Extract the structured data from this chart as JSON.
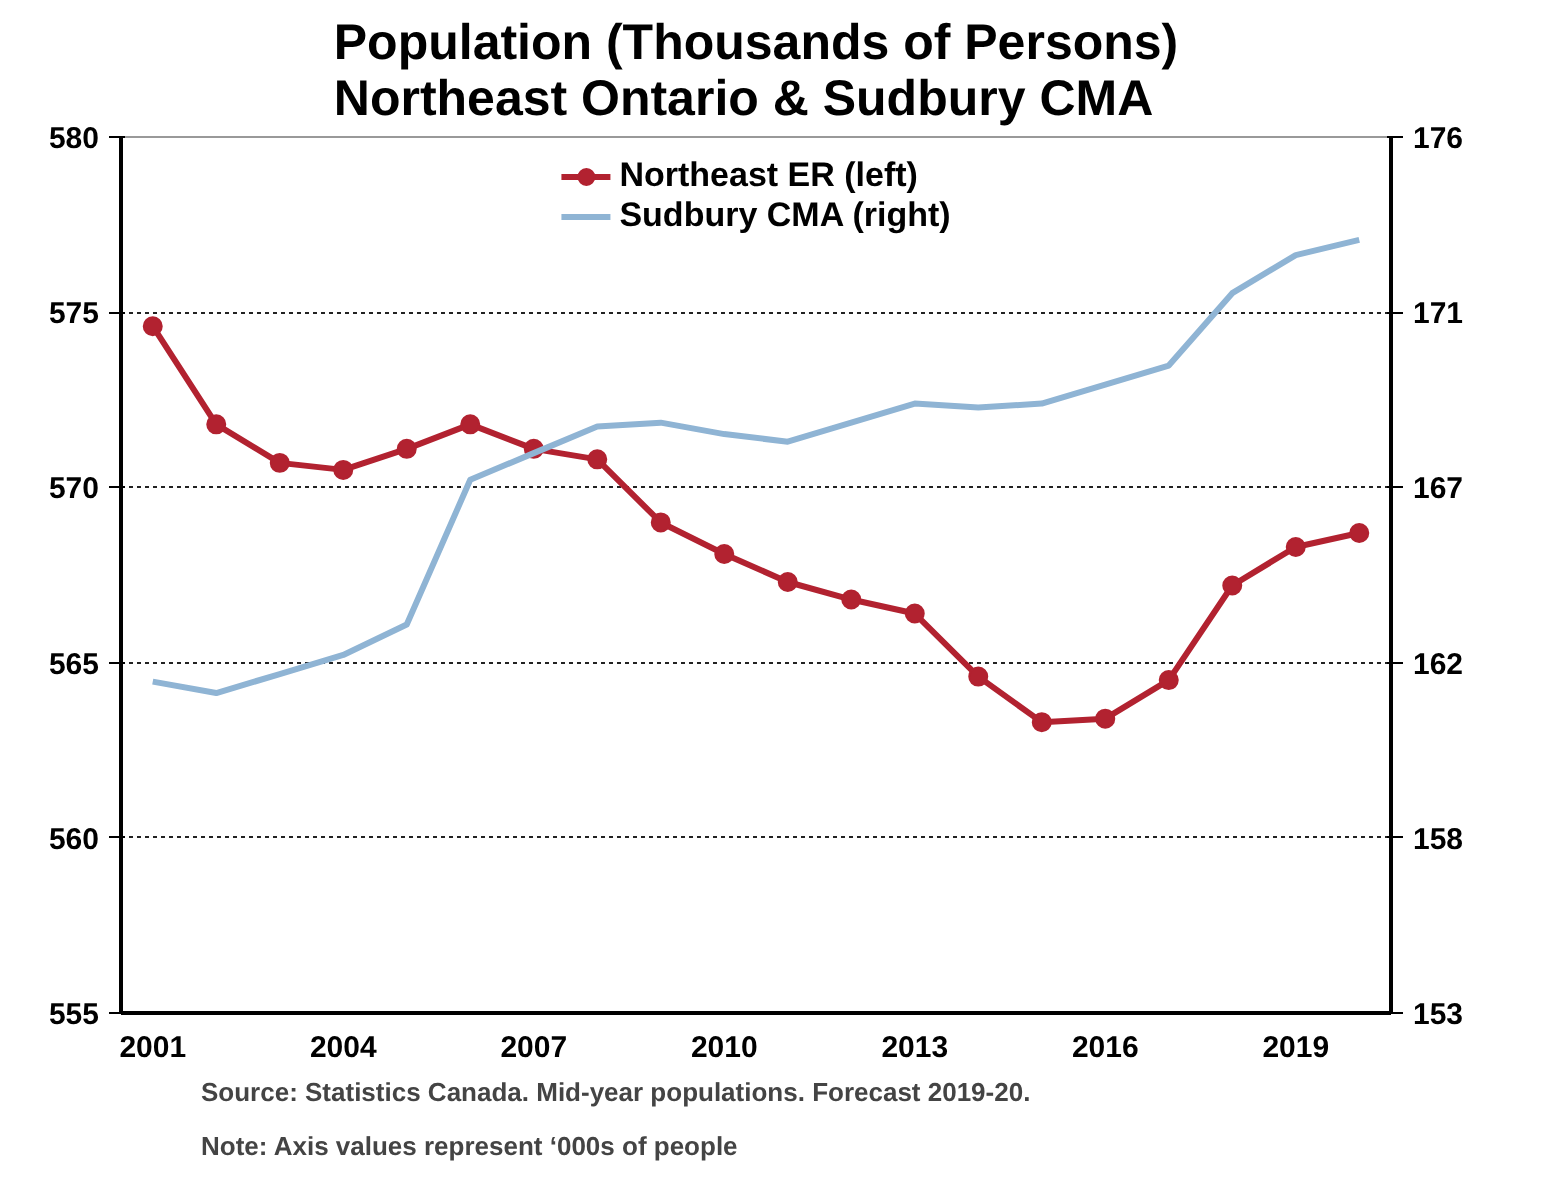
{
  "chart_data": {
    "type": "line",
    "title": "Population (Thousands of Persons)\nNortheast Ontario & Sudbury CMA",
    "x": [
      2001,
      2002,
      2003,
      2004,
      2005,
      2006,
      2007,
      2008,
      2009,
      2010,
      2011,
      2012,
      2013,
      2014,
      2015,
      2016,
      2017,
      2018,
      2019,
      2020
    ],
    "series": [
      {
        "name": "Northeast ER (left)",
        "color": "#b22230",
        "marker": "circle",
        "values": [
          574.6,
          571.8,
          570.7,
          570.5,
          571.1,
          571.8,
          571.1,
          570.8,
          569.0,
          568.1,
          567.3,
          566.8,
          566.4,
          564.6,
          563.3,
          563.4,
          564.5,
          567.2,
          568.3,
          568.7
        ]
      },
      {
        "name": "Sudbury CMA (right)",
        "color": "#8fb4d4",
        "marker": "none",
        "axis": "y2",
        "values": [
          161.7,
          161.4,
          161.9,
          162.4,
          163.2,
          167.0,
          167.7,
          168.4,
          168.5,
          168.2,
          168.0,
          168.5,
          169.0,
          168.9,
          169.0,
          169.5,
          170.0,
          171.9,
          172.9,
          173.3
        ]
      }
    ],
    "xlim": [
      2000.5,
      2020.5
    ],
    "xticks": [
      2001,
      2004,
      2007,
      2010,
      2013,
      2016,
      2019
    ],
    "ylim": [
      555,
      580
    ],
    "yticks": [
      555,
      560,
      565,
      570,
      575,
      580
    ],
    "y2lim": [
      153,
      176
    ],
    "y2ticks": [
      153,
      {
        "value": 157.6,
        "label": "158"
      },
      {
        "value": 162.2,
        "label": "162"
      },
      {
        "value": 166.8,
        "label": "167"
      },
      {
        "value": 171.4,
        "label": "171"
      },
      176
    ],
    "grid": "y",
    "legend": "top",
    "line_style": "solid",
    "annotations": [
      "Source:  Statistics Canada. Mid-year populations. Forecast 2019-20.",
      "Note: Axis values represent ‘000s of people"
    ]
  }
}
